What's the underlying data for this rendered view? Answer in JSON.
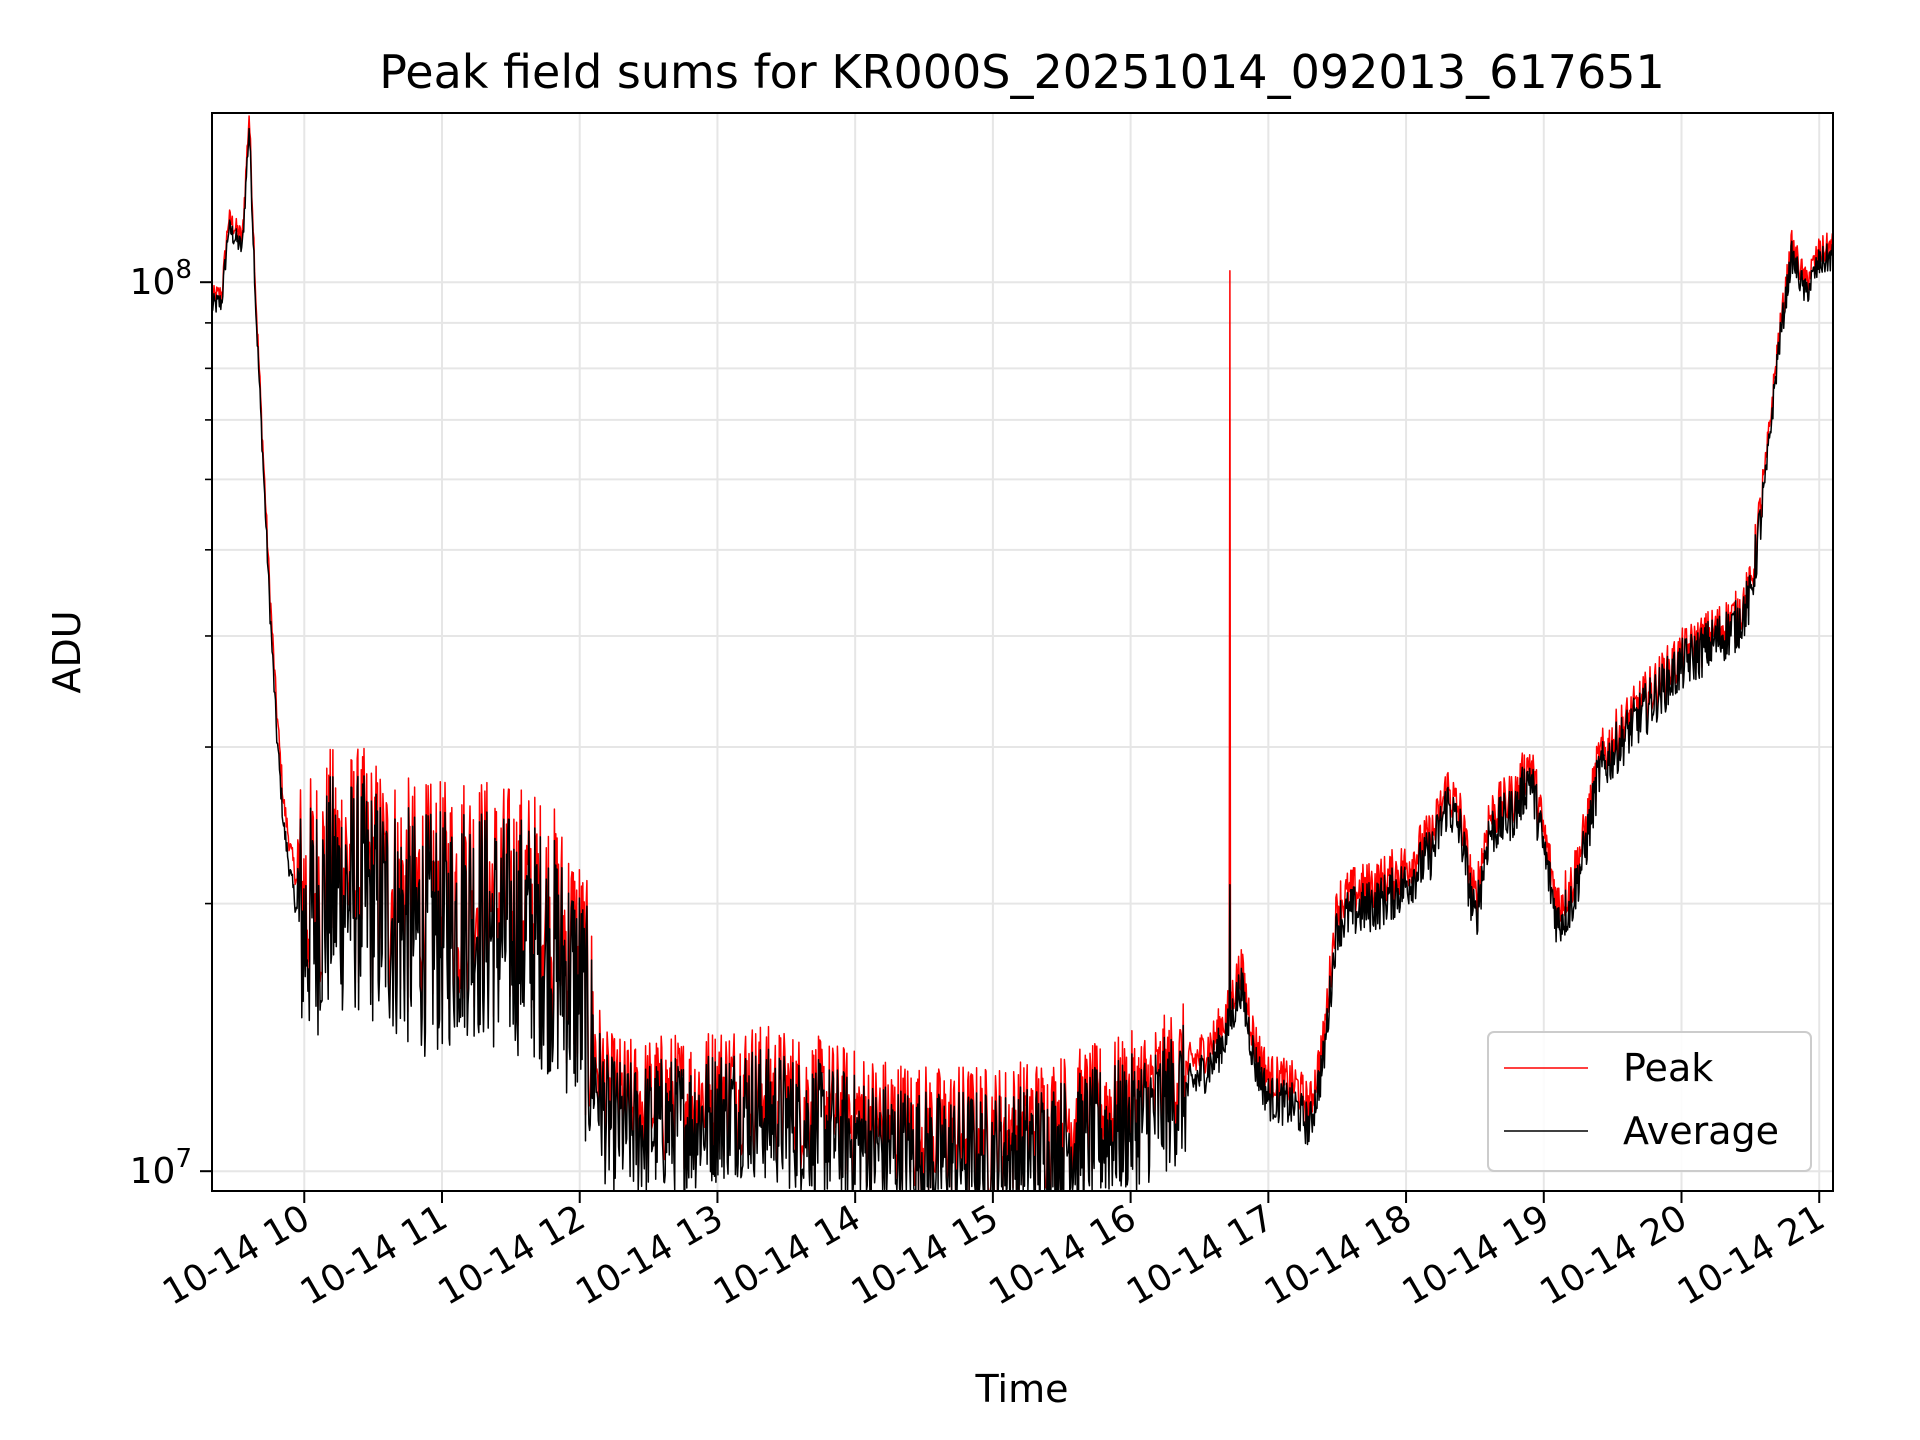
{
  "chart_data": {
    "type": "line",
    "title": "Peak field sums for KR000S_20251014_092013_617651",
    "xlabel": "Time",
    "ylabel": "ADU",
    "yscale": "log",
    "ylim": [
      9500000,
      155000000
    ],
    "xlim": [
      9.33,
      21.1
    ],
    "grid": true,
    "legend_position": "bottom-right",
    "x_ticks": [
      {
        "value": 10,
        "label": "10-14 10"
      },
      {
        "value": 11,
        "label": "10-14 11"
      },
      {
        "value": 12,
        "label": "10-14 12"
      },
      {
        "value": 13,
        "label": "10-14 13"
      },
      {
        "value": 14,
        "label": "10-14 14"
      },
      {
        "value": 15,
        "label": "10-14 15"
      },
      {
        "value": 16,
        "label": "10-14 16"
      },
      {
        "value": 17,
        "label": "10-14 17"
      },
      {
        "value": 18,
        "label": "10-14 18"
      },
      {
        "value": 19,
        "label": "10-14 19"
      },
      {
        "value": 20,
        "label": "10-14 20"
      },
      {
        "value": 21,
        "label": "10-14 21"
      }
    ],
    "y_major_ticks": [
      {
        "value": 10000000,
        "base": "10",
        "exp": "7"
      },
      {
        "value": 100000000,
        "base": "10",
        "exp": "8"
      }
    ],
    "y_minor_ticks": [
      20000000,
      30000000,
      40000000,
      50000000,
      60000000,
      70000000,
      80000000,
      90000000
    ],
    "series": [
      {
        "name": "Peak",
        "color": "#ff0000",
        "x": [
          9.33,
          9.4,
          9.45,
          9.5,
          9.55,
          9.6,
          9.65,
          9.7,
          9.75,
          9.8,
          9.85,
          9.9,
          9.95,
          10.0,
          10.1,
          10.2,
          10.4,
          10.6,
          10.8,
          11.0,
          11.2,
          11.4,
          11.6,
          11.8,
          12.0,
          12.05,
          12.1,
          12.2,
          12.4,
          12.6,
          12.8,
          13.0,
          13.2,
          13.4,
          13.6,
          13.8,
          14.0,
          14.2,
          14.4,
          14.6,
          14.8,
          15.0,
          15.2,
          15.4,
          15.6,
          15.8,
          16.0,
          16.2,
          16.4,
          16.6,
          16.7,
          16.8,
          16.9,
          17.0,
          17.2,
          17.3,
          17.4,
          17.5,
          17.6,
          17.8,
          18.0,
          18.2,
          18.3,
          18.4,
          18.5,
          18.6,
          18.8,
          18.9,
          19.0,
          19.1,
          19.2,
          19.3,
          19.4,
          19.6,
          19.8,
          20.0,
          20.2,
          20.4,
          20.5,
          20.6,
          20.7,
          20.8,
          20.9,
          21.0,
          21.1
        ],
        "values": [
          96000000,
          97000000,
          118000000,
          115000000,
          112000000,
          155000000,
          95000000,
          65000000,
          45000000,
          33000000,
          26000000,
          23000000,
          21000000,
          20000000,
          21000000,
          22000000,
          22000000,
          21000000,
          20000000,
          20000000,
          21000000,
          20000000,
          20000000,
          19000000,
          17000000,
          15500000,
          13800000,
          12000000,
          11800000,
          12000000,
          12000000,
          12300000,
          12500000,
          12200000,
          12000000,
          11800000,
          11500000,
          11300000,
          11200000,
          11000000,
          11100000,
          11000000,
          11200000,
          11300000,
          11500000,
          11700000,
          12000000,
          12400000,
          13000000,
          14000000,
          15000000,
          17000000,
          14000000,
          12800000,
          12500000,
          11800000,
          14000000,
          20000000,
          20500000,
          21000000,
          22000000,
          24000000,
          27000000,
          25000000,
          20000000,
          25000000,
          26500000,
          29000000,
          24000000,
          20000000,
          21000000,
          24000000,
          29000000,
          32000000,
          35000000,
          38000000,
          40000000,
          42000000,
          45000000,
          60000000,
          85000000,
          110000000,
          100000000,
          108000000,
          110000000
        ]
      },
      {
        "name": "Average",
        "color": "#000000",
        "x": [
          9.33,
          9.4,
          9.45,
          9.5,
          9.55,
          9.6,
          9.65,
          9.7,
          9.75,
          9.8,
          9.85,
          9.9,
          9.95,
          10.0,
          10.1,
          10.2,
          10.4,
          10.6,
          10.8,
          11.0,
          11.2,
          11.4,
          11.6,
          11.8,
          12.0,
          12.05,
          12.1,
          12.2,
          12.4,
          12.6,
          12.8,
          13.0,
          13.2,
          13.4,
          13.6,
          13.8,
          14.0,
          14.2,
          14.4,
          14.6,
          14.8,
          15.0,
          15.2,
          15.4,
          15.6,
          15.8,
          16.0,
          16.2,
          16.4,
          16.6,
          16.7,
          16.8,
          16.9,
          17.0,
          17.2,
          17.3,
          17.4,
          17.5,
          17.6,
          17.8,
          18.0,
          18.2,
          18.3,
          18.4,
          18.5,
          18.6,
          18.8,
          18.9,
          19.0,
          19.1,
          19.2,
          19.3,
          19.4,
          19.6,
          19.8,
          20.0,
          20.2,
          20.4,
          20.5,
          20.6,
          20.7,
          20.8,
          20.9,
          21.0,
          21.1
        ],
        "values": [
          94000000,
          95000000,
          115000000,
          112000000,
          109000000,
          150000000,
          92000000,
          63000000,
          43000000,
          31000000,
          24500000,
          21500000,
          19500000,
          18500000,
          19500000,
          20500000,
          20500000,
          19500000,
          18500000,
          18500000,
          19500000,
          18500000,
          18500000,
          17500000,
          15800000,
          14500000,
          13000000,
          11300000,
          11100000,
          11300000,
          11300000,
          11600000,
          11800000,
          11500000,
          11300000,
          11100000,
          10800000,
          10600000,
          10500000,
          10300000,
          10400000,
          10300000,
          10500000,
          10600000,
          10800000,
          11000000,
          11300000,
          11700000,
          12300000,
          13300000,
          14300000,
          16200000,
          13300000,
          12100000,
          11800000,
          11200000,
          13300000,
          19000000,
          19500000,
          20000000,
          21000000,
          23000000,
          26000000,
          24000000,
          19000000,
          24000000,
          25500000,
          28000000,
          23000000,
          19000000,
          20000000,
          23000000,
          28000000,
          31000000,
          34000000,
          37000000,
          39000000,
          41000000,
          44000000,
          58000000,
          83000000,
          107000000,
          97000000,
          105000000,
          107000000
        ]
      }
    ],
    "spike": {
      "x": 16.72,
      "peak": 103000000,
      "average": 21000000
    }
  }
}
